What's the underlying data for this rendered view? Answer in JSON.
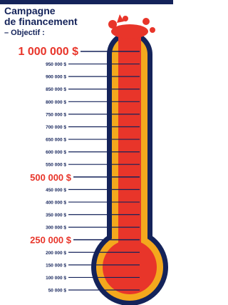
{
  "title": [
    "Campagne",
    "de financement",
    "– Objectif :"
  ],
  "scale": [
    {
      "label": "1 000 000 $",
      "emphasis": true
    },
    {
      "label": "950 000 $",
      "emphasis": false
    },
    {
      "label": "900 000 $",
      "emphasis": false
    },
    {
      "label": "850 000 $",
      "emphasis": false
    },
    {
      "label": "800 000 $",
      "emphasis": false
    },
    {
      "label": "750 000 $",
      "emphasis": false
    },
    {
      "label": "700 000 $",
      "emphasis": false
    },
    {
      "label": "650 000 $",
      "emphasis": false
    },
    {
      "label": "600 000 $",
      "emphasis": false
    },
    {
      "label": "550 000 $",
      "emphasis": false
    },
    {
      "label": "500 000 $",
      "emphasis": true
    },
    {
      "label": "450 000 $",
      "emphasis": false
    },
    {
      "label": "400 000 $",
      "emphasis": false
    },
    {
      "label": "350 000 $",
      "emphasis": false
    },
    {
      "label": "300 000 $",
      "emphasis": false
    },
    {
      "label": "250 000 $",
      "emphasis": true
    },
    {
      "label": "200 000 $",
      "emphasis": false
    },
    {
      "label": "150 000 $",
      "emphasis": false
    },
    {
      "label": "100 000 $",
      "emphasis": false
    },
    {
      "label": "50 000 $",
      "emphasis": false
    }
  ]
}
